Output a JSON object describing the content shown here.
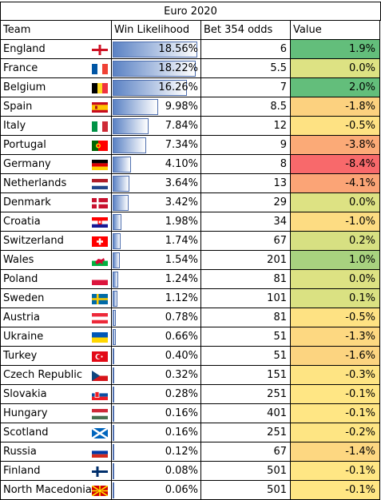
{
  "title": "Euro 2020",
  "headers": {
    "team": "Team",
    "likelihood": "Win Likelihood",
    "odds": "Bet 354 odds",
    "value": "Value"
  },
  "max_likelihood": 18.56,
  "rows": [
    {
      "team": "England",
      "flag": "england-flag-icon",
      "likelihood": "18.56%",
      "likelihood_num": 18.56,
      "odds": "6",
      "value": "1.9%",
      "value_color": "#63be7b"
    },
    {
      "team": "France",
      "flag": "france-flag-icon",
      "likelihood": "18.22%",
      "likelihood_num": 18.22,
      "odds": "5.5",
      "value": "0.0%",
      "value_color": "#dde283"
    },
    {
      "team": "Belgium",
      "flag": "belgium-flag-icon",
      "likelihood": "16.26%",
      "likelihood_num": 16.26,
      "odds": "7",
      "value": "2.0%",
      "value_color": "#63be7b"
    },
    {
      "team": "Spain",
      "flag": "spain-flag-icon",
      "likelihood": "9.98%",
      "likelihood_num": 9.98,
      "odds": "8.5",
      "value": "-1.8%",
      "value_color": "#fcd17f"
    },
    {
      "team": "Italy",
      "flag": "italy-flag-icon",
      "likelihood": "7.84%",
      "likelihood_num": 7.84,
      "odds": "12",
      "value": "-0.5%",
      "value_color": "#fee283"
    },
    {
      "team": "Portugal",
      "flag": "portugal-flag-icon",
      "likelihood": "7.34%",
      "likelihood_num": 7.34,
      "odds": "9",
      "value": "-3.8%",
      "value_color": "#fbaa77"
    },
    {
      "team": "Germany",
      "flag": "germany-flag-icon",
      "likelihood": "4.10%",
      "likelihood_num": 4.1,
      "odds": "8",
      "value": "-8.4%",
      "value_color": "#f8696b"
    },
    {
      "team": "Netherlands",
      "flag": "netherlands-flag-icon",
      "likelihood": "3.64%",
      "likelihood_num": 3.64,
      "odds": "13",
      "value": "-4.1%",
      "value_color": "#fba476"
    },
    {
      "team": "Denmark",
      "flag": "denmark-flag-icon",
      "likelihood": "3.42%",
      "likelihood_num": 3.42,
      "odds": "29",
      "value": "0.0%",
      "value_color": "#dde283"
    },
    {
      "team": "Croatia",
      "flag": "croatia-flag-icon",
      "likelihood": "1.98%",
      "likelihood_num": 1.98,
      "odds": "34",
      "value": "-1.0%",
      "value_color": "#fddc82"
    },
    {
      "team": "Switzerland",
      "flag": "switzerland-flag-icon",
      "likelihood": "1.74%",
      "likelihood_num": 1.74,
      "odds": "67",
      "value": "0.2%",
      "value_color": "#d7e082"
    },
    {
      "team": "Wales",
      "flag": "wales-flag-icon",
      "likelihood": "1.54%",
      "likelihood_num": 1.54,
      "odds": "201",
      "value": "1.0%",
      "value_color": "#a8d27f"
    },
    {
      "team": "Poland",
      "flag": "poland-flag-icon",
      "likelihood": "1.24%",
      "likelihood_num": 1.24,
      "odds": "81",
      "value": "0.0%",
      "value_color": "#dde283"
    },
    {
      "team": "Sweden",
      "flag": "sweden-flag-icon",
      "likelihood": "1.12%",
      "likelihood_num": 1.12,
      "odds": "101",
      "value": "0.1%",
      "value_color": "#dae182"
    },
    {
      "team": "Austria",
      "flag": "austria-flag-icon",
      "likelihood": "0.78%",
      "likelihood_num": 0.78,
      "odds": "81",
      "value": "-0.5%",
      "value_color": "#fee283"
    },
    {
      "team": "Ukraine",
      "flag": "ukraine-flag-icon",
      "likelihood": "0.66%",
      "likelihood_num": 0.66,
      "odds": "51",
      "value": "-1.3%",
      "value_color": "#fdd881"
    },
    {
      "team": "Turkey",
      "flag": "turkey-flag-icon",
      "likelihood": "0.40%",
      "likelihood_num": 0.4,
      "odds": "51",
      "value": "-1.6%",
      "value_color": "#fcd480"
    },
    {
      "team": "Czech Republic",
      "flag": "czech-republic-flag-icon",
      "likelihood": "0.32%",
      "likelihood_num": 0.32,
      "odds": "151",
      "value": "-0.3%",
      "value_color": "#fee483"
    },
    {
      "team": "Slovakia",
      "flag": "slovakia-flag-icon",
      "likelihood": "0.28%",
      "likelihood_num": 0.28,
      "odds": "251",
      "value": "-0.1%",
      "value_color": "#ffe684"
    },
    {
      "team": "Hungary",
      "flag": "hungary-flag-icon",
      "likelihood": "0.16%",
      "likelihood_num": 0.16,
      "odds": "401",
      "value": "-0.1%",
      "value_color": "#ffe684"
    },
    {
      "team": "Scotland",
      "flag": "scotland-flag-icon",
      "likelihood": "0.16%",
      "likelihood_num": 0.16,
      "odds": "251",
      "value": "-0.2%",
      "value_color": "#fee583"
    },
    {
      "team": "Russia",
      "flag": "russia-flag-icon",
      "likelihood": "0.12%",
      "likelihood_num": 0.12,
      "odds": "67",
      "value": "-1.4%",
      "value_color": "#fdd781"
    },
    {
      "team": "Finland",
      "flag": "finland-flag-icon",
      "likelihood": "0.08%",
      "likelihood_num": 0.08,
      "odds": "501",
      "value": "-0.1%",
      "value_color": "#ffe684"
    },
    {
      "team": "North Macedonia",
      "flag": "north-macedonia-flag-icon",
      "likelihood": "0.06%",
      "likelihood_num": 0.06,
      "odds": "501",
      "value": "-0.1%",
      "value_color": "#ffe684"
    }
  ]
}
